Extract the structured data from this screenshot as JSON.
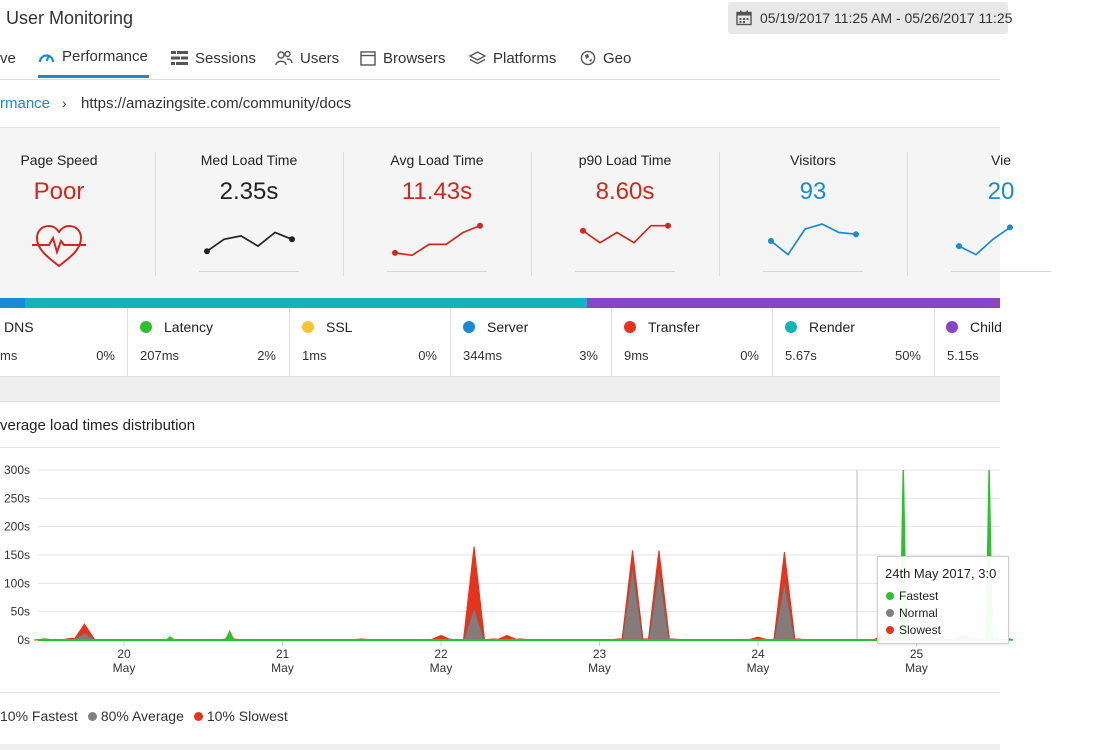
{
  "header": {
    "title": "User Monitoring",
    "date_range": "05/19/2017 11:25 AM - 05/26/2017 11:25"
  },
  "tabs": [
    {
      "label": "ve",
      "icon": "overview-icon"
    },
    {
      "label": "Performance",
      "icon": "gauge-icon",
      "active": true
    },
    {
      "label": "Sessions",
      "icon": "sessions-icon"
    },
    {
      "label": "Users",
      "icon": "users-icon"
    },
    {
      "label": "Browsers",
      "icon": "browser-window-icon"
    },
    {
      "label": "Platforms",
      "icon": "layers-icon"
    },
    {
      "label": "Geo",
      "icon": "globe-icon"
    }
  ],
  "breadcrumb": {
    "link": "rmance",
    "separator": "›",
    "url": "https://amazingsite.com/community/docs"
  },
  "kpis": [
    {
      "label": "Page Speed",
      "value": "Poor",
      "color": "#d0281c",
      "icon": "heartbeat-icon"
    },
    {
      "label": "Med Load Time",
      "value": "2.35s",
      "color": "#222222",
      "spark": [
        0.2,
        0.55,
        0.65,
        0.35,
        0.75,
        0.55
      ]
    },
    {
      "label": "Avg Load Time",
      "value": "11.43s",
      "color": "#d0281c",
      "spark": [
        0.15,
        0.08,
        0.4,
        0.4,
        0.75,
        0.95
      ]
    },
    {
      "label": "p90 Load Time",
      "value": "8.60s",
      "color": "#d0281c",
      "spark": [
        0.8,
        0.45,
        0.75,
        0.45,
        0.95,
        0.95
      ]
    },
    {
      "label": "Visitors",
      "value": "93",
      "color": "#1a8ad4",
      "spark": [
        0.5,
        0.1,
        0.85,
        1.0,
        0.75,
        0.7
      ]
    },
    {
      "label": "Vie",
      "value": "20",
      "color": "#1a8ad4",
      "spark": [
        0.35,
        0.1,
        0.55,
        0.9
      ]
    }
  ],
  "stage_bar": [
    {
      "color": "#1a8ad4",
      "share": 0.025
    },
    {
      "color": "#13b3bd",
      "share": 0.562
    },
    {
      "color": "#8b43c8",
      "share": 0.413
    }
  ],
  "stages": [
    {
      "name": "DNS",
      "time": "ms",
      "pct": "0%",
      "color": ""
    },
    {
      "name": "Latency",
      "time": "207ms",
      "pct": "2%",
      "color": "#2ec12e"
    },
    {
      "name": "SSL",
      "time": "1ms",
      "pct": "0%",
      "color": "#f7c330"
    },
    {
      "name": "Server",
      "time": "344ms",
      "pct": "3%",
      "color": "#1a8ad4"
    },
    {
      "name": "Transfer",
      "time": "9ms",
      "pct": "0%",
      "color": "#e8331c"
    },
    {
      "name": "Render",
      "time": "5.67s",
      "pct": "50%",
      "color": "#13b3bd"
    },
    {
      "name": "Child",
      "time": "5.15s",
      "pct": "",
      "color": "#8b43c8"
    }
  ],
  "chart": {
    "title": "verage load times distribution",
    "y_ticks": [
      "300s",
      "250s",
      "200s",
      "150s",
      "100s",
      "50s",
      "0s"
    ],
    "x_ticks": [
      {
        "day": "20",
        "month": "May"
      },
      {
        "day": "21",
        "month": "May"
      },
      {
        "day": "22",
        "month": "May"
      },
      {
        "day": "23",
        "month": "May"
      },
      {
        "day": "24",
        "month": "May"
      },
      {
        "day": "25",
        "month": "May"
      }
    ],
    "legend": [
      {
        "label": "10% Fastest",
        "color": "#2ec12e"
      },
      {
        "label": "80% Average",
        "color": "#808080"
      },
      {
        "label": "10% Slowest",
        "color": "#e8331c"
      }
    ],
    "tooltip": {
      "title": "24th May 2017, 3:0",
      "rows": [
        {
          "label": "Fastest",
          "color": "#2ec12e"
        },
        {
          "label": "Normal",
          "color": "#808080"
        },
        {
          "label": "Slowest",
          "color": "#e8331c"
        }
      ]
    }
  },
  "chart_data": {
    "type": "area",
    "title": "verage load times distribution",
    "xlabel": "",
    "ylabel": "",
    "ylim": [
      0,
      300
    ],
    "x_range": [
      "2017-05-19 11:25",
      "2017-05-26 11:25"
    ],
    "series": [
      {
        "name": "10% Slowest",
        "color": "#e8331c",
        "points": [
          [
            "2017-05-19 12:00",
            2
          ],
          [
            "2017-05-19 16:00",
            3
          ],
          [
            "2017-05-19 18:00",
            28
          ],
          [
            "2017-05-19 19:00",
            2
          ],
          [
            "2017-05-20 16:00",
            3
          ],
          [
            "2017-05-21 12:00",
            2
          ],
          [
            "2017-05-22 00:00",
            8
          ],
          [
            "2017-05-22 05:00",
            165
          ],
          [
            "2017-05-22 08:00",
            2
          ],
          [
            "2017-05-22 10:00",
            8
          ],
          [
            "2017-05-22 12:00",
            2
          ],
          [
            "2017-05-23 03:00",
            2
          ],
          [
            "2017-05-23 05:00",
            158
          ],
          [
            "2017-05-23 07:00",
            2
          ],
          [
            "2017-05-23 09:00",
            158
          ],
          [
            "2017-05-23 11:00",
            2
          ],
          [
            "2017-05-24 00:00",
            5
          ],
          [
            "2017-05-24 04:00",
            155
          ],
          [
            "2017-05-24 06:00",
            2
          ],
          [
            "2017-05-24 19:00",
            8
          ],
          [
            "2017-05-25 07:00",
            8
          ],
          [
            "2017-05-25 12:00",
            2
          ]
        ]
      },
      {
        "name": "80% Average",
        "color": "#808080",
        "points": [
          [
            "2017-05-19 18:00",
            12
          ],
          [
            "2017-05-22 05:00",
            55
          ],
          [
            "2017-05-23 05:00",
            125
          ],
          [
            "2017-05-23 09:00",
            120
          ],
          [
            "2017-05-24 04:00",
            100
          ]
        ]
      },
      {
        "name": "10% Fastest",
        "color": "#2ec12e",
        "points": [
          [
            "2017-05-19 12:00",
            2
          ],
          [
            "2017-05-20 07:00",
            5
          ],
          [
            "2017-05-20 16:00",
            15
          ],
          [
            "2017-05-24 22:00",
            300
          ],
          [
            "2017-05-25 11:00",
            300
          ],
          [
            "2017-05-25 14:00",
            2
          ]
        ]
      }
    ]
  }
}
